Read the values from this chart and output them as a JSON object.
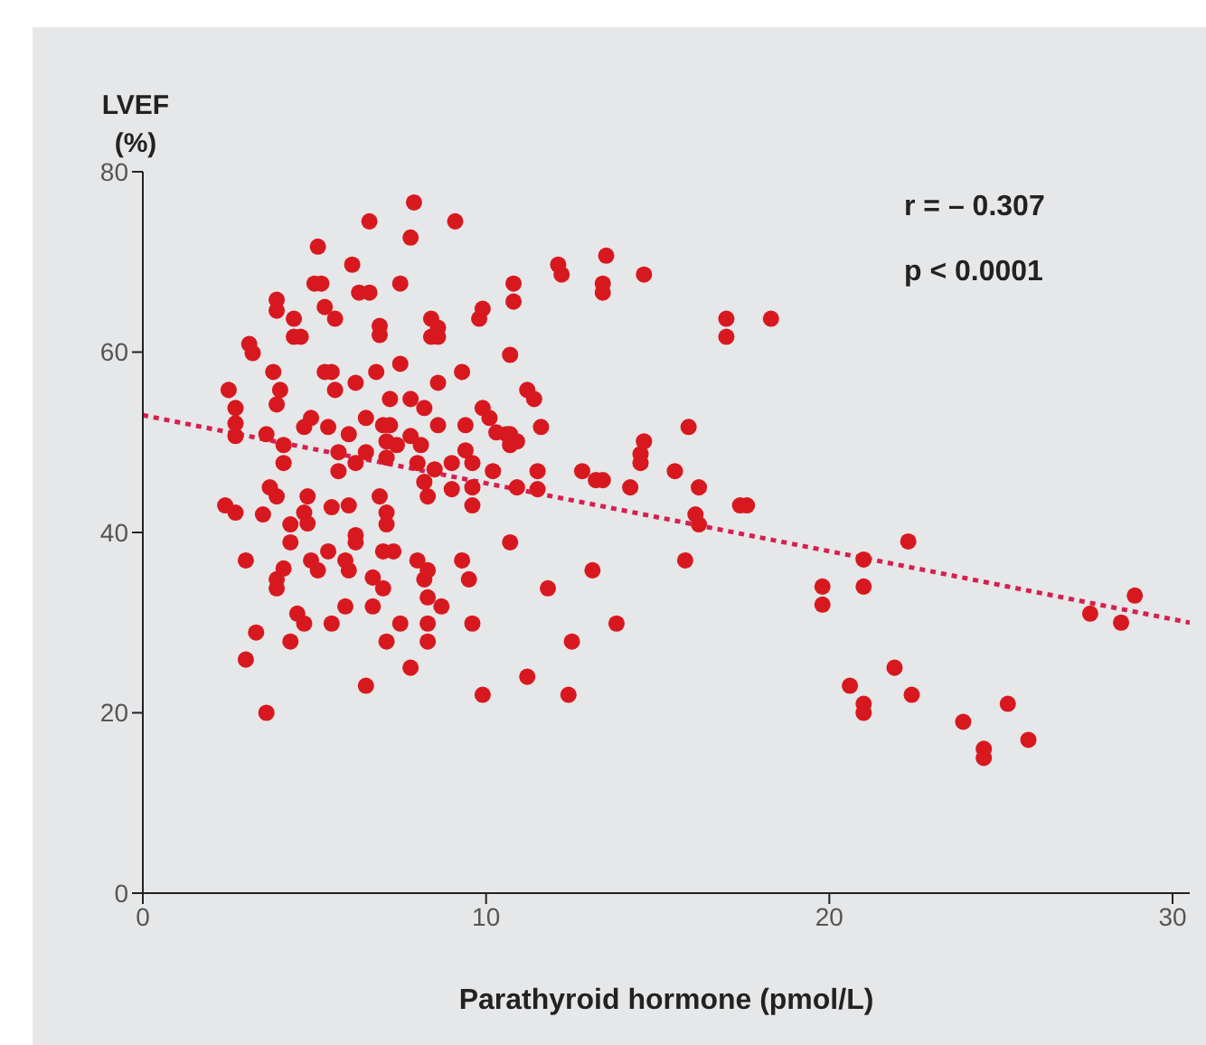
{
  "chart_data": {
    "type": "scatter",
    "xlabel": "Parathyroid hormone (pmol/L)",
    "ylabel": "LVEF\n(%)",
    "annotations": [
      "r = – 0.307",
      "p < 0.0001"
    ],
    "xlim": [
      0,
      30.5
    ],
    "xticks": [
      0,
      10,
      20,
      30
    ],
    "ylim": [
      0,
      80
    ],
    "yticks": [
      0,
      20,
      40,
      60,
      80
    ],
    "marker": "circle",
    "series": [
      {
        "color": "#d7191f",
        "x": [
          19.8,
          19.8,
          21.0,
          21.0,
          22.3,
          27.6,
          28.5,
          28.9,
          20.6,
          21.0,
          21.0,
          21.9,
          22.4,
          23.9,
          25.2,
          24.5,
          24.5,
          25.8,
          12.1,
          12.2,
          13.5,
          13.4,
          13.4,
          14.6,
          10.8,
          10.8,
          17.0,
          17.0,
          18.3,
          10.7,
          11.2,
          11.4,
          11.6,
          10.7,
          10.7,
          15.9,
          14.6,
          14.5,
          14.5,
          11.5,
          10.9,
          11.5,
          12.8,
          13.2,
          13.4,
          14.2,
          15.5,
          16.2,
          17.4,
          17.6,
          16.1,
          16.2,
          10.7,
          15.8,
          13.1,
          11.8,
          13.8,
          12.5,
          11.2,
          12.4,
          7.9,
          6.6,
          9.1,
          7.8,
          5.1,
          6.1,
          5.2,
          5.0,
          6.3,
          6.6,
          7.5,
          3.9,
          3.9,
          5.3,
          5.6,
          4.4,
          4.6,
          4.4,
          6.9,
          6.9,
          8.4,
          8.6,
          8.6,
          8.4,
          9.9,
          9.8,
          3.1,
          3.2,
          3.8,
          5.3,
          5.5,
          5.6,
          6.8,
          7.5,
          6.2,
          4.0,
          3.9,
          8.6,
          9.3,
          2.5,
          2.7,
          7.2,
          7.8,
          8.2,
          2.7,
          2.7,
          3.6,
          4.9,
          4.7,
          5.4,
          6.5,
          4.1,
          4.1,
          6.0,
          7.0,
          7.2,
          7.1,
          7.4,
          7.8,
          8.1,
          8.6,
          9.4,
          9.9,
          10.1,
          10.3,
          10.6,
          10.9,
          5.7,
          5.7,
          6.5,
          6.2,
          7.1,
          8.0,
          8.2,
          8.5,
          9.0,
          9.4,
          9.6,
          10.2,
          3.7,
          3.9,
          2.4,
          2.7,
          3.5,
          4.8,
          4.7,
          5.5,
          6.0,
          6.9,
          7.1,
          7.1,
          8.3,
          9.0,
          9.6,
          9.6,
          6.2,
          4.3,
          4.3,
          4.8,
          3.0,
          4.1,
          3.9,
          3.9,
          4.9,
          5.1,
          5.4,
          5.9,
          6.0,
          6.2,
          7.0,
          7.3,
          6.7,
          7.0,
          8.0,
          8.3,
          8.2,
          8.3,
          9.3,
          9.5,
          8.7,
          5.9,
          6.7,
          4.5,
          4.7,
          5.5,
          7.5,
          8.3,
          9.6,
          3.3,
          4.3,
          7.1,
          8.3,
          3.0,
          7.8,
          6.5,
          9.9,
          3.6
        ],
        "values": [
          34,
          32,
          37,
          34,
          39,
          31,
          30,
          33,
          23,
          21,
          20,
          25,
          22,
          19,
          21,
          16,
          15,
          17,
          69.7,
          68.6,
          70.7,
          67.6,
          66.6,
          68.6,
          67.6,
          65.6,
          63.7,
          61.7,
          63.7,
          59.7,
          55.8,
          54.8,
          51.7,
          50.9,
          49.7,
          51.7,
          50.1,
          48.7,
          47.7,
          46.8,
          45.0,
          44.8,
          46.8,
          45.8,
          45.8,
          45.0,
          46.8,
          45.0,
          43.0,
          43.0,
          42.0,
          40.9,
          38.9,
          36.9,
          35.8,
          33.8,
          29.9,
          27.9,
          24.0,
          22.0,
          76.6,
          74.5,
          74.5,
          72.7,
          71.7,
          69.7,
          67.6,
          67.6,
          66.6,
          66.6,
          67.6,
          65.8,
          64.6,
          65.0,
          63.7,
          63.7,
          61.7,
          61.7,
          62.9,
          61.9,
          63.7,
          62.7,
          61.7,
          61.7,
          64.8,
          63.7,
          60.9,
          59.9,
          57.8,
          57.8,
          57.8,
          55.8,
          57.8,
          58.7,
          56.6,
          55.8,
          54.2,
          56.6,
          57.8,
          55.8,
          53.8,
          54.8,
          54.8,
          53.8,
          52.1,
          50.7,
          50.9,
          52.7,
          51.7,
          51.7,
          52.7,
          49.7,
          47.7,
          50.9,
          51.9,
          51.9,
          50.1,
          49.7,
          50.7,
          49.7,
          51.9,
          51.9,
          53.8,
          52.7,
          51.1,
          50.9,
          50.1,
          48.9,
          46.8,
          48.9,
          47.7,
          48.3,
          47.7,
          45.6,
          47.0,
          47.7,
          49.1,
          47.7,
          46.8,
          45.0,
          44.0,
          43.0,
          42.2,
          42.0,
          44.0,
          42.2,
          42.8,
          43.0,
          44.0,
          42.2,
          40.9,
          44.0,
          44.8,
          45.0,
          43.0,
          39.7,
          40.9,
          38.9,
          41.0,
          36.9,
          36.0,
          34.8,
          33.8,
          36.9,
          35.8,
          37.9,
          36.9,
          35.8,
          38.9,
          37.9,
          37.9,
          35.0,
          33.8,
          36.9,
          35.8,
          34.8,
          32.8,
          36.9,
          34.8,
          31.8,
          31.8,
          31.8,
          31.0,
          29.9,
          29.9,
          29.9,
          29.9,
          29.9,
          28.9,
          27.9,
          27.9,
          27.9,
          25.9,
          25.0,
          23.0,
          22.0,
          20.0
        ]
      },
      {
        "type": "line",
        "color": "#d6204f",
        "line_style": "dotted",
        "marker": "none",
        "x": [
          0,
          30.5
        ],
        "values": [
          53,
          30
        ]
      }
    ]
  }
}
